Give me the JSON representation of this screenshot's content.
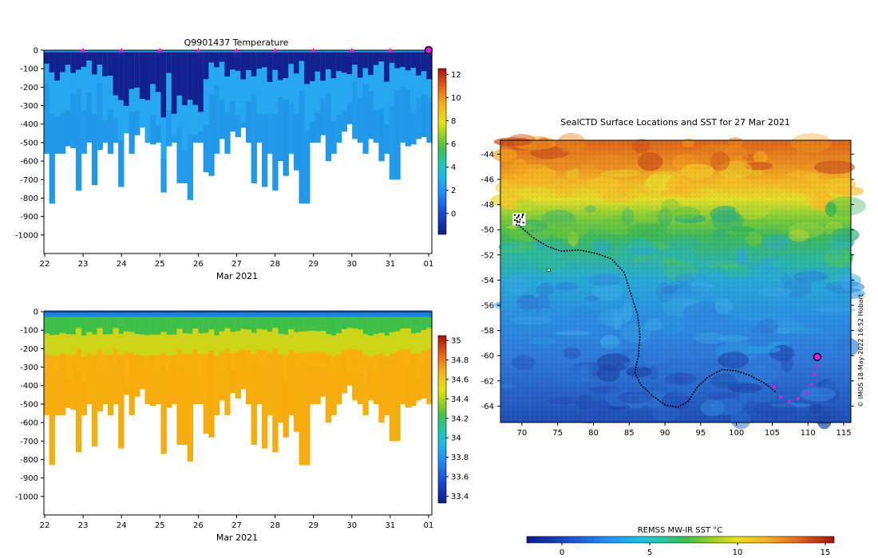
{
  "chart_data": [
    {
      "type": "heatmap",
      "title": "Q9901437  Temperature",
      "xlabel": "Mar 2021",
      "ylabel": "",
      "x_tick_labels": [
        "22",
        "23",
        "24",
        "25",
        "26",
        "27",
        "28",
        "29",
        "30",
        "31",
        "01"
      ],
      "y_ticks": [
        0,
        -100,
        -200,
        -300,
        -400,
        -500,
        -600,
        -700,
        -800,
        -900,
        -1000
      ],
      "ylim": [
        -1100,
        0
      ],
      "colorbar": {
        "range": [
          -1.8,
          12.5
        ],
        "ticks": [
          0,
          2,
          4,
          6,
          8,
          10,
          12
        ]
      },
      "profile_markers_x": [
        23,
        24,
        25,
        26,
        27,
        28,
        29,
        30,
        31
      ],
      "current_position_x": 32
    },
    {
      "type": "heatmap",
      "title": "",
      "xlabel": "Mar 2021",
      "ylabel": "",
      "x_tick_labels": [
        "22",
        "23",
        "24",
        "25",
        "26",
        "27",
        "28",
        "29",
        "30",
        "31",
        "01"
      ],
      "y_ticks": [
        0,
        -100,
        -200,
        -300,
        -400,
        -500,
        -600,
        -700,
        -800,
        -900,
        -1000
      ],
      "ylim": [
        -1100,
        0
      ],
      "colorbar": {
        "range": [
          33.33,
          35.05
        ],
        "ticks": [
          33.4,
          33.6,
          33.8,
          34,
          34.2,
          34.4,
          34.6,
          34.8,
          35
        ]
      }
    },
    {
      "type": "heatmap",
      "title": "SealCTD Surface Locations and SST for 27 Mar 2021",
      "xlabel": "",
      "ylabel": "",
      "x_ticks": [
        70,
        75,
        80,
        85,
        90,
        95,
        100,
        105,
        110,
        115
      ],
      "y_ticks": [
        -44,
        -46,
        -48,
        -50,
        -52,
        -54,
        -56,
        -58,
        -60,
        -62,
        -64
      ],
      "xlim": [
        67,
        116
      ],
      "ylim": [
        -65.3,
        -42.9
      ],
      "colorbar": {
        "label": "REMSS MW-IR SST °C",
        "range": [
          -2,
          15.5
        ],
        "ticks": [
          0,
          5,
          10,
          15
        ]
      },
      "track_start": {
        "lon": 69.5,
        "lat": -49.6
      },
      "track_end": {
        "lon": 111.3,
        "lat": -60.1
      },
      "credit": "© IMOS 18-May-2022 16:52 Hobart"
    }
  ]
}
